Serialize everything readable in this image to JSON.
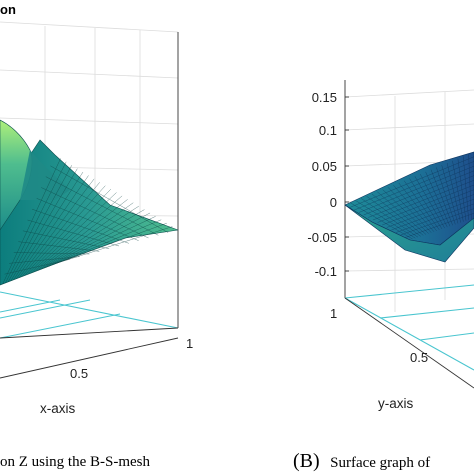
{
  "chart_data": [
    {
      "type": "surface",
      "title": "on",
      "xlabel": "x-axis",
      "x_ticks": [
        "0.5",
        "1"
      ],
      "caption": "on Z using the B-S-mesh",
      "grid": true,
      "colormap": [
        "#0c7d7d",
        "#2a9a93",
        "#4fbd8e",
        "#aef07a"
      ]
    },
    {
      "type": "surface",
      "ylabel": "y-axis",
      "z_ticks": [
        "0.15",
        "0.1",
        "0.05",
        "0",
        "-0.05",
        "-0.1"
      ],
      "y_ticks": [
        "1",
        "0.5"
      ],
      "caption_letter": "(B)",
      "caption": "Surface graph of",
      "grid": true,
      "colormap": [
        "#1e4f8c",
        "#1c6f96",
        "#1e8c98",
        "#2aa38f"
      ]
    }
  ]
}
